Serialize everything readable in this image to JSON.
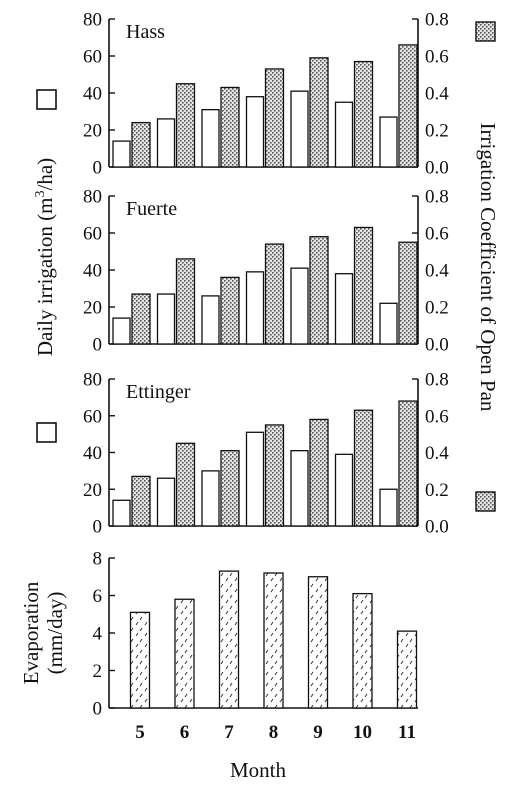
{
  "chart_data": {
    "type": "bar",
    "categories": [
      "5",
      "6",
      "7",
      "8",
      "9",
      "10",
      "11"
    ],
    "xlabel": "Month",
    "ylabel_left": "Daily irrigation (m3/ha)",
    "ylabel_right": "Irrigation Coefficient of Open Pan",
    "panels": [
      {
        "title": "Hass",
        "ylim_left": [
          0,
          80
        ],
        "yticks_left": [
          "0",
          "20",
          "40",
          "60",
          "80"
        ],
        "ylim_right": [
          0,
          0.8
        ],
        "yticks_right": [
          "0.0",
          "0.2",
          "0.4",
          "0.6",
          "0.8"
        ],
        "series": [
          {
            "name": "Daily irrigation",
            "axis": "left",
            "fill": "open",
            "values": [
              14,
              26,
              31,
              38,
              41,
              35,
              27
            ]
          },
          {
            "name": "Irrigation coefficient",
            "axis": "right",
            "fill": "stippled",
            "values": [
              0.24,
              0.45,
              0.43,
              0.53,
              0.59,
              0.57,
              0.66
            ]
          }
        ]
      },
      {
        "title": "Fuerte",
        "ylim_left": [
          0,
          80
        ],
        "yticks_left": [
          "0",
          "20",
          "40",
          "60",
          "80"
        ],
        "ylim_right": [
          0,
          0.8
        ],
        "yticks_right": [
          "0.0",
          "0.2",
          "0.4",
          "0.6",
          "0.8"
        ],
        "series": [
          {
            "name": "Daily irrigation",
            "axis": "left",
            "fill": "open",
            "values": [
              14,
              27,
              26,
              39,
              41,
              38,
              22
            ]
          },
          {
            "name": "Irrigation coefficient",
            "axis": "right",
            "fill": "stippled",
            "values": [
              0.27,
              0.46,
              0.36,
              0.54,
              0.58,
              0.63,
              0.55
            ]
          }
        ]
      },
      {
        "title": "Ettinger",
        "ylim_left": [
          0,
          80
        ],
        "yticks_left": [
          "0",
          "20",
          "40",
          "60",
          "80"
        ],
        "ylim_right": [
          0,
          0.8
        ],
        "yticks_right": [
          "0.0",
          "0.2",
          "0.4",
          "0.6",
          "0.8"
        ],
        "series": [
          {
            "name": "Daily irrigation",
            "axis": "left",
            "fill": "open",
            "values": [
              14,
              26,
              30,
              51,
              41,
              39,
              20
            ]
          },
          {
            "name": "Irrigation coefficient",
            "axis": "right",
            "fill": "stippled",
            "values": [
              0.27,
              0.45,
              0.41,
              0.55,
              0.58,
              0.63,
              0.68
            ]
          }
        ]
      }
    ],
    "evaporation": {
      "ylabel_line1": "Evaporation",
      "ylabel_line2": "(mm/day)",
      "ylim": [
        0,
        8
      ],
      "yticks": [
        "0",
        "2",
        "4",
        "6",
        "8"
      ],
      "series": [
        {
          "name": "Evaporation",
          "fill": "hatched",
          "values": [
            5.1,
            5.8,
            7.3,
            7.2,
            7.0,
            6.1,
            4.1
          ]
        }
      ]
    },
    "grid": false,
    "legend": "left and right axis titles marked with an open square and a stippled square"
  },
  "colors": {
    "ink": "#111111",
    "bar_open": "#ffffff",
    "stipple": "#8a8a8a",
    "hatch": "#222222",
    "background": "#ffffff"
  }
}
